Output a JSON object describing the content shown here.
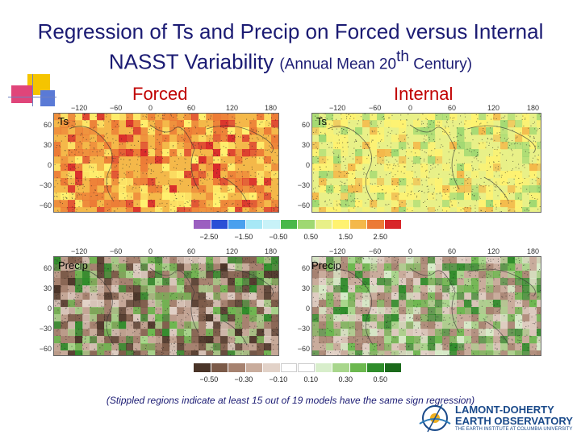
{
  "title": {
    "line1": "Regression of Ts and Precip on Forced versus Internal",
    "line2_main": "NASST Variability ",
    "line2_sub_a": "(Annual Mean 20",
    "line2_sup": "th",
    "line2_sub_b": " Century)"
  },
  "columns": {
    "forced": "Forced",
    "internal": "Internal"
  },
  "panels": {
    "ts": "Ts",
    "precip": "Precip"
  },
  "lon_ticks": [
    "−120",
    "−60",
    "0",
    "60",
    "120",
    "180"
  ],
  "lat_ticks": [
    "60",
    "30",
    "0",
    "−30",
    "−60"
  ],
  "ts_colorbar": {
    "ticks": [
      "−2.50",
      "−1.50",
      "−0.50",
      "0.50",
      "1.50",
      "2.50"
    ],
    "colors": [
      "#9b5fc0",
      "#2a4fd6",
      "#4aa0ee",
      "#a7e8f6",
      "#c8f2f8",
      "#49b84a",
      "#9fd872",
      "#e8f088",
      "#fff270",
      "#f4b84a",
      "#ec7a36",
      "#d8262a"
    ]
  },
  "precip_colorbar": {
    "ticks": [
      "−0.50",
      "−0.30",
      "−0.10",
      "0.10",
      "0.30",
      "0.50"
    ],
    "colors": [
      "#4a3428",
      "#7b5a48",
      "#a68270",
      "#c9ac9c",
      "#e2d2c8",
      "#ffffff",
      "#ffffff",
      "#d8eecb",
      "#a8d68c",
      "#6cb84f",
      "#2f8d2b",
      "#1b6a1b"
    ]
  },
  "footnote": "(Stippled regions indicate at least 15 out of 19 models have the same sign regression)",
  "logo": {
    "line1": "LAMONT-DOHERTY",
    "line2": "EARTH OBSERVATORY",
    "line3": "THE EARTH INSTITUTE AT COLUMBIA UNIVERSITY"
  }
}
